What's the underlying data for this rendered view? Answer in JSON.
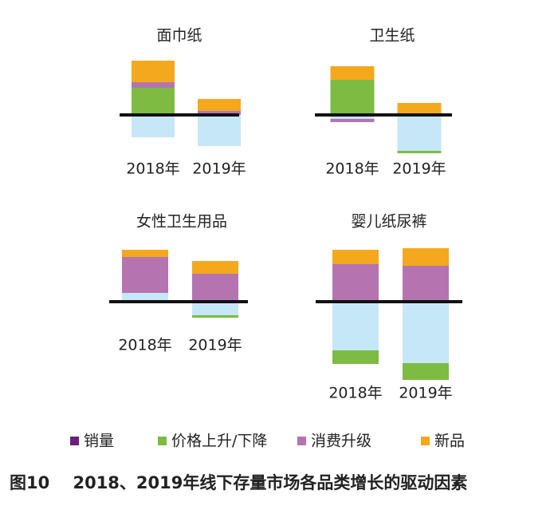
{
  "chart_data": [
    {
      "type": "bar",
      "title": "面巾纸",
      "categories": [
        "2018年",
        "2019年"
      ],
      "series": [
        {
          "name": "销量",
          "color": "#c6e7f7",
          "legend_color": "#6b1f7c",
          "values": [
            -28,
            -39
          ]
        },
        {
          "name": "价格上升/下降",
          "color": "#7dbb42",
          "values": [
            34,
            0
          ]
        },
        {
          "name": "消费升级",
          "color": "#b574b0",
          "values": [
            7,
            5
          ]
        },
        {
          "name": "新品",
          "color": "#f4a81d",
          "values": [
            27,
            15
          ]
        }
      ]
    },
    {
      "type": "bar",
      "title": "卫生纸",
      "categories": [
        "2018年",
        "2019年"
      ],
      "series": [
        {
          "name": "销量",
          "color": "#c6e7f7",
          "values": [
            -5,
            -45
          ]
        },
        {
          "name": "价格上升/下降",
          "color": "#7dbb42",
          "values": [
            44,
            -3
          ]
        },
        {
          "name": "消费升级",
          "color": "#b574b0",
          "values": [
            -4,
            0
          ]
        },
        {
          "name": "新品",
          "color": "#f4a81d",
          "values": [
            17,
            15
          ]
        }
      ]
    },
    {
      "type": "bar",
      "title": "女性卫生用品",
      "categories": [
        "2018年",
        "2019年"
      ],
      "series": [
        {
          "name": "销量",
          "color": "#c6e7f7",
          "values": [
            11,
            -17
          ]
        },
        {
          "name": "价格上升/下降",
          "color": "#7dbb42",
          "values": [
            0,
            -3
          ]
        },
        {
          "name": "消费升级",
          "color": "#b574b0",
          "values": [
            45,
            35
          ]
        },
        {
          "name": "新品",
          "color": "#f4a81d",
          "values": [
            9,
            16
          ]
        }
      ]
    },
    {
      "type": "bar",
      "title": "婴儿纸尿裤",
      "categories": [
        "2018年",
        "2019年"
      ],
      "series": [
        {
          "name": "销量",
          "color": "#c6e7f7",
          "values": [
            -61,
            -77
          ]
        },
        {
          "name": "价格上升/下降",
          "color": "#7dbb42",
          "values": [
            -17,
            -21
          ]
        },
        {
          "name": "消费升级",
          "color": "#b574b0",
          "values": [
            47,
            45
          ]
        },
        {
          "name": "新品",
          "color": "#f4a81d",
          "values": [
            18,
            22
          ]
        }
      ]
    }
  ],
  "caption": "图10    2018、2019年线下存量市场各品类增长的驱动因素"
}
